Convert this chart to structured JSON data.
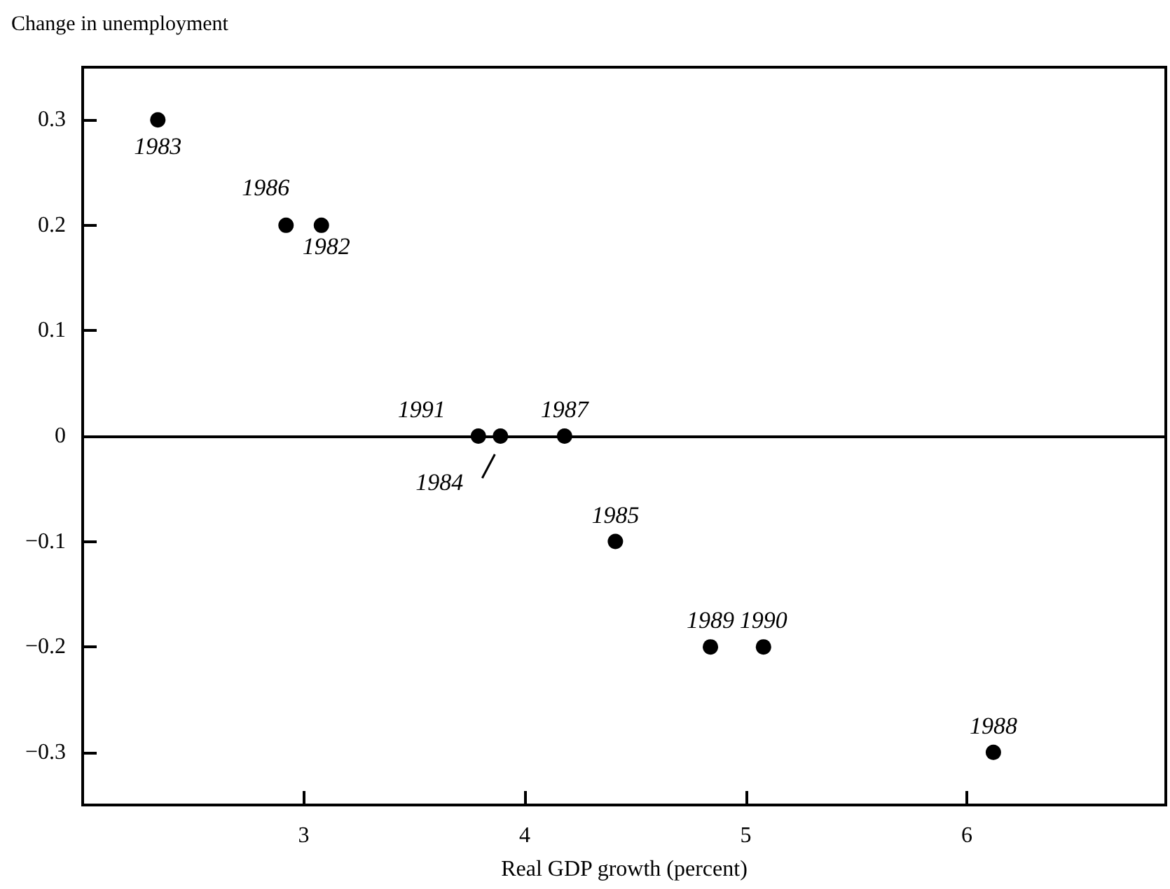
{
  "chart_data": {
    "type": "scatter",
    "xlabel": "Real GDP growth (percent)",
    "ylabel": "Change in unemployment",
    "x": [
      2.34,
      2.92,
      3.08,
      3.79,
      3.89,
      4.18,
      4.41,
      4.84,
      5.08,
      6.12
    ],
    "series": [
      {
        "color": "#000000",
        "values": [
          0.3,
          0.2,
          0.2,
          0,
          0,
          0,
          -0.1,
          -0.2,
          -0.2,
          -0.3
        ]
      }
    ],
    "annotations": [
      {
        "text": "1983",
        "x": 2.34,
        "y": 0.3
      },
      {
        "text": "1986",
        "x": 2.92,
        "y": 0.2
      },
      {
        "text": "1982",
        "x": 3.08,
        "y": 0.2
      },
      {
        "text": "1991",
        "x": 3.79,
        "y": 0
      },
      {
        "text": "1984",
        "x": 3.89,
        "y": 0
      },
      {
        "text": "1987",
        "x": 4.18,
        "y": 0
      },
      {
        "text": "1985",
        "x": 4.41,
        "y": -0.1
      },
      {
        "text": "1989",
        "x": 4.84,
        "y": -0.2
      },
      {
        "text": "1990",
        "x": 5.08,
        "y": -0.2
      },
      {
        "text": "1988",
        "x": 6.12,
        "y": -0.3
      }
    ],
    "xlim": [
      2,
      6.9
    ],
    "xticks": [
      3,
      4,
      5,
      6
    ],
    "ylim": [
      -0.35,
      0.35
    ],
    "yticks": [
      -0.3,
      -0.2,
      -0.1,
      0,
      0.1,
      0.2,
      0.3
    ],
    "ref_lines": [
      {
        "axis": "y",
        "value": 0,
        "color": "#000000"
      }
    ],
    "grid": false,
    "marker": "circle"
  }
}
